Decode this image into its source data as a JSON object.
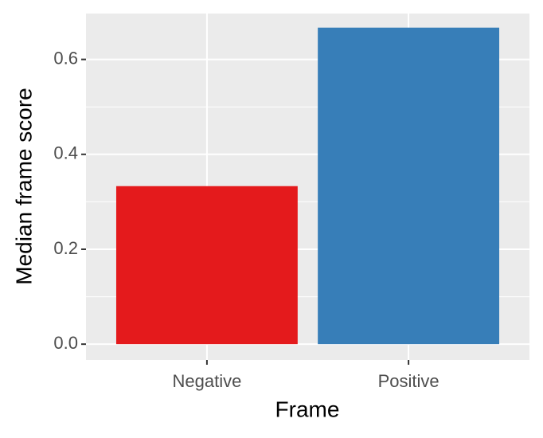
{
  "chart_data": {
    "type": "bar",
    "x_label": "Frame",
    "y_label": "Median frame score",
    "categories": [
      "Negative",
      "Positive"
    ],
    "values": [
      0.333,
      0.667
    ],
    "colors": [
      "#e41a1c",
      "#377eb8"
    ],
    "ylim": [
      -0.0333,
      0.6967
    ],
    "yticks": [
      {
        "value": 0,
        "label": "0.0"
      },
      0.2,
      0.4,
      0.6
    ],
    "grid": true
  }
}
